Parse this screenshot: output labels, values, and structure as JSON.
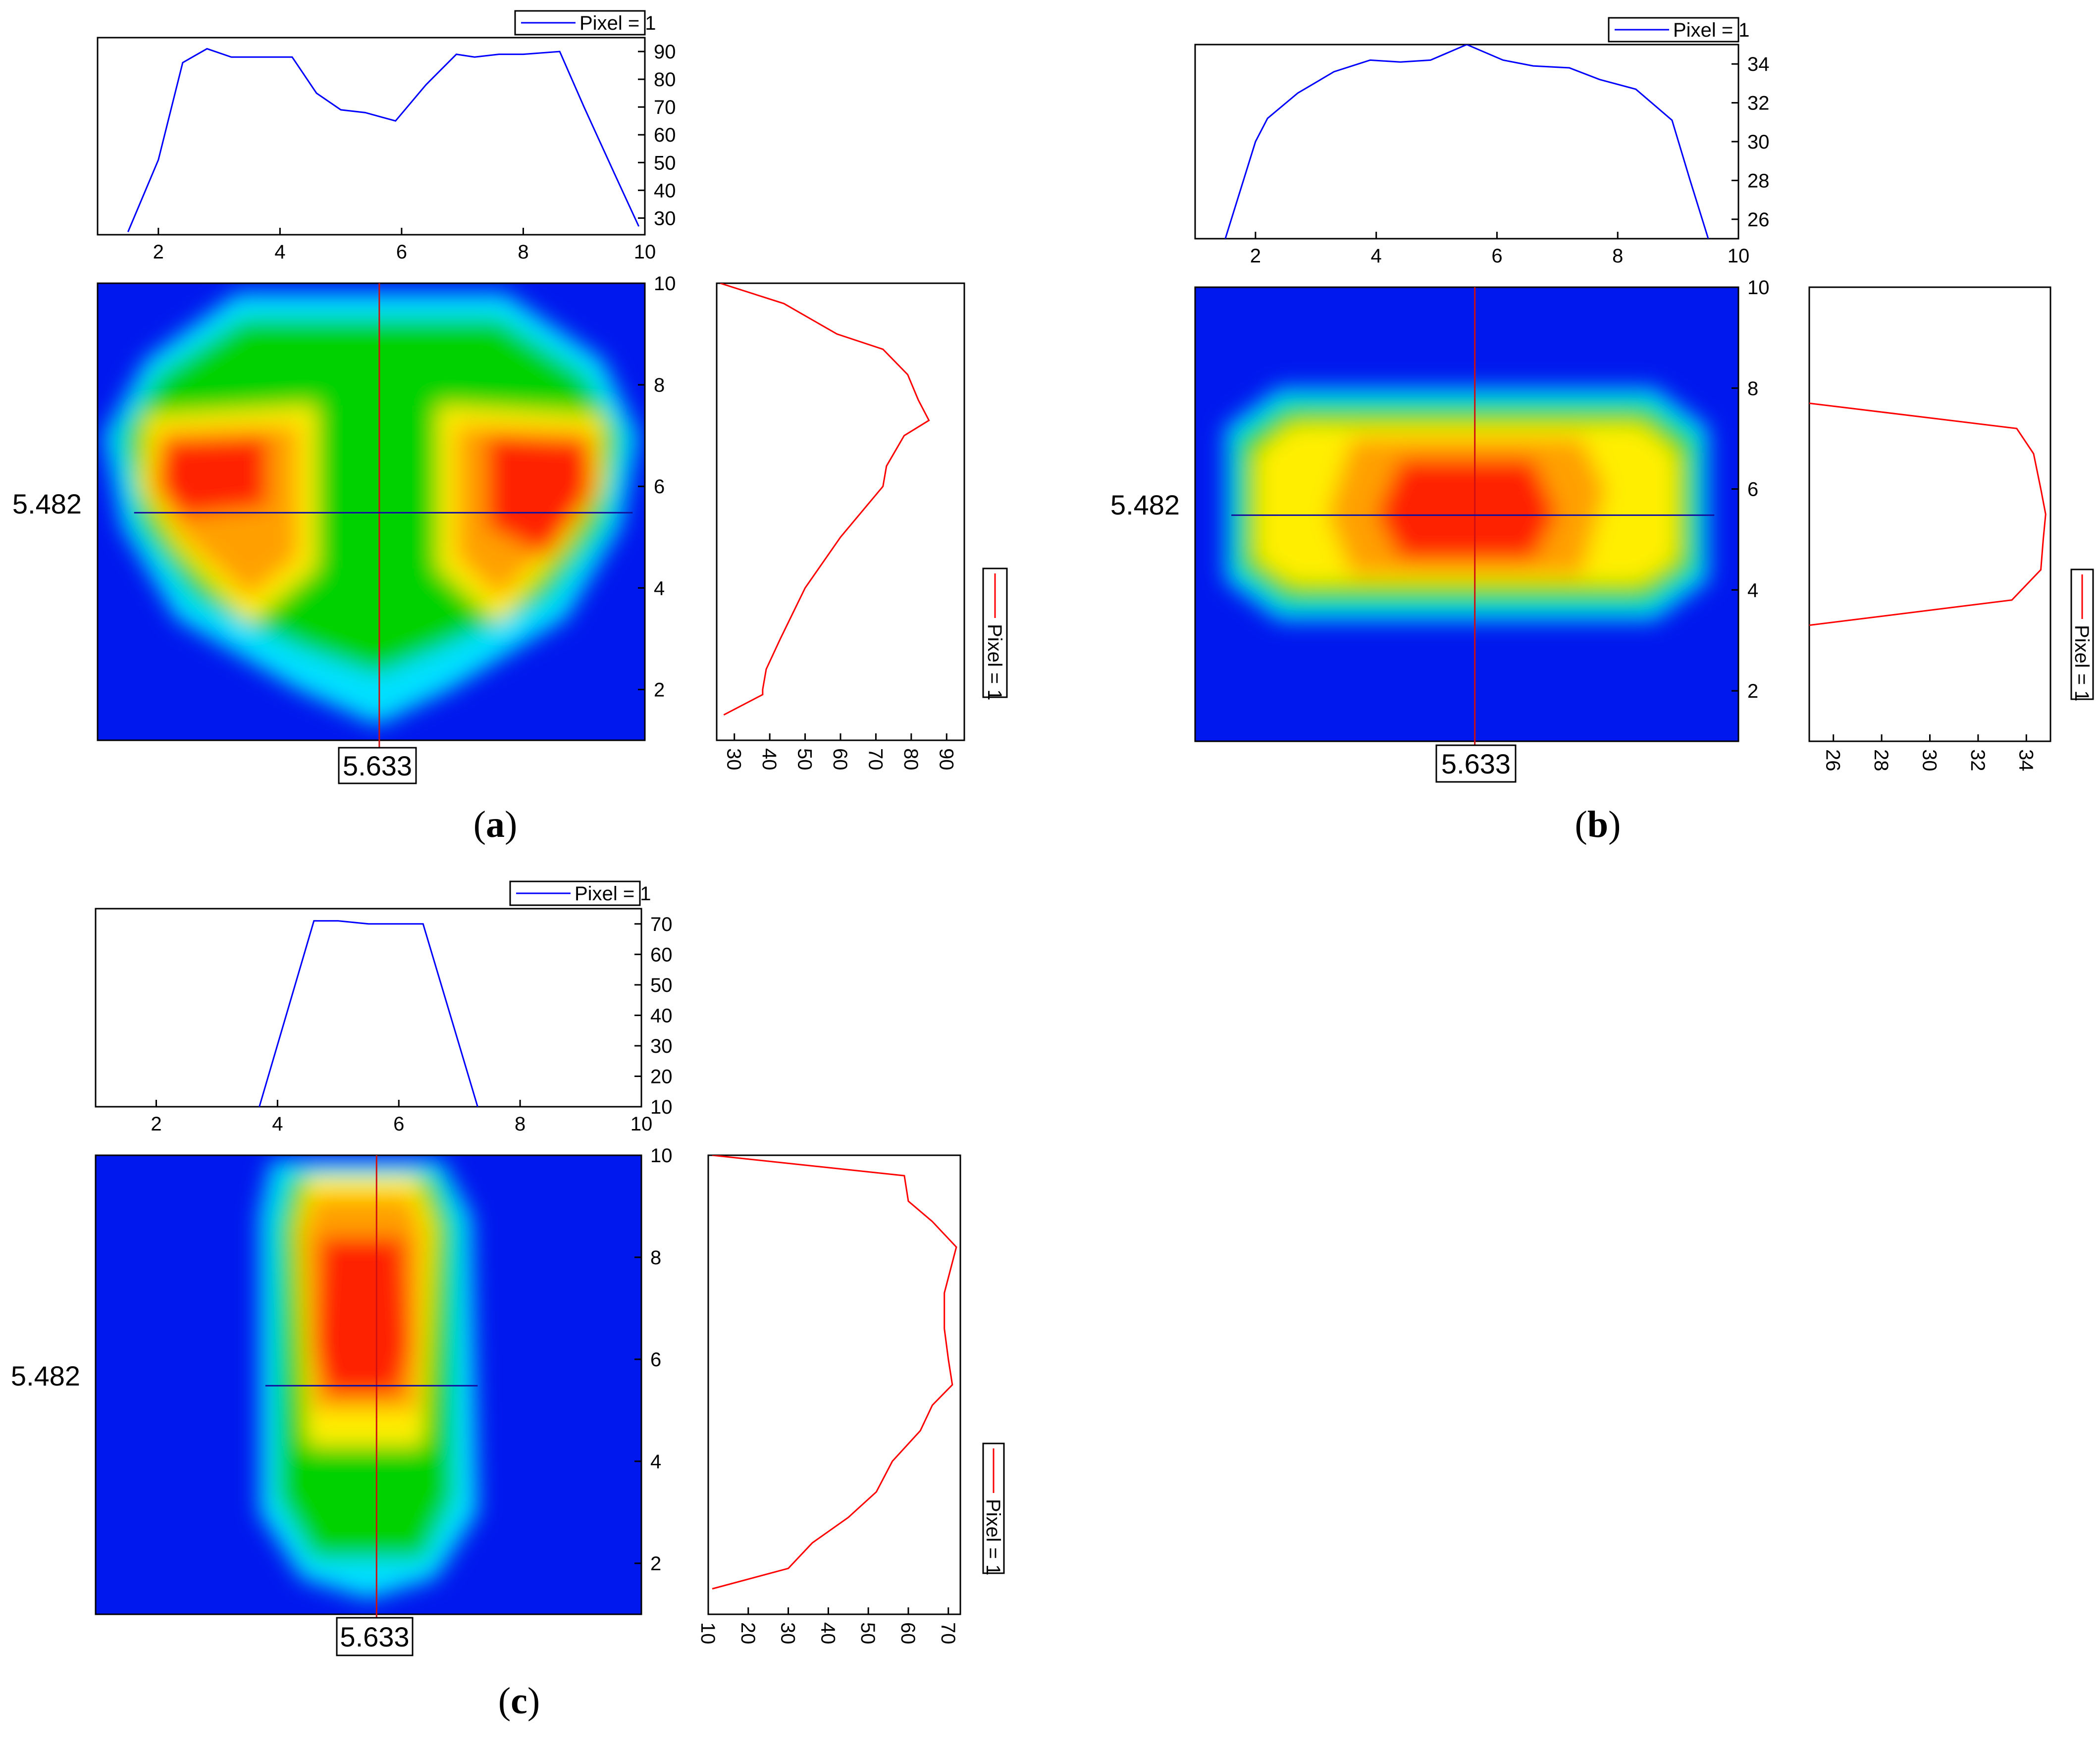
{
  "chart_data": [
    {
      "type": "heatmap",
      "panel_label": "a",
      "crosshair": {
        "x_value": "5.633",
        "y_value": "5.482",
        "x": 5.633,
        "y": 5.482
      },
      "top_profile": {
        "type": "line",
        "legend": "Pixel = 1",
        "series_name": "Pixel = 1",
        "color": "#0000ff",
        "xlim": [
          1,
          10
        ],
        "xticks": [
          2,
          4,
          6,
          8,
          10
        ],
        "ylim": [
          24,
          95
        ],
        "yticks": [
          30,
          40,
          50,
          60,
          70,
          80,
          90
        ],
        "x": [
          1.5,
          2.0,
          2.4,
          2.8,
          3.2,
          3.6,
          4.0,
          4.2,
          4.6,
          5.0,
          5.4,
          5.9,
          6.4,
          6.9,
          7.2,
          7.6,
          8.0,
          8.6,
          9.0,
          9.5,
          9.9
        ],
        "y": [
          25,
          51,
          86,
          91,
          88,
          88,
          88,
          88,
          75,
          69,
          68,
          65,
          78,
          89,
          88,
          89,
          89,
          90,
          70,
          46,
          27
        ]
      },
      "right_profile": {
        "type": "line",
        "legend": "Pixel = 1",
        "series_name": "Pixel = 1",
        "color": "#ff0000",
        "ylim": [
          1,
          10
        ],
        "yticks": [
          2,
          4,
          6,
          8,
          10
        ],
        "xlim": [
          25,
          95
        ],
        "xticks": [
          30,
          40,
          50,
          60,
          70,
          80,
          90
        ],
        "y": [
          1.5,
          1.9,
          2.0,
          2.4,
          3.0,
          4.0,
          5.0,
          6.0,
          6.4,
          7.0,
          7.3,
          7.7,
          8.2,
          8.7,
          9.0,
          9.6,
          10.0
        ],
        "x": [
          27,
          38,
          38,
          39,
          43,
          50,
          60,
          72,
          73,
          78,
          85,
          82,
          79,
          72,
          59,
          44,
          26
        ]
      },
      "map": {
        "xlim": [
          1,
          10
        ],
        "ylim": [
          1,
          10
        ],
        "colorscale": [
          "#0018ee",
          "#00e0ff",
          "#18e07a",
          "#00d200",
          "#ffee00",
          "#ffa000",
          "#ff2400"
        ]
      }
    },
    {
      "type": "heatmap",
      "panel_label": "b",
      "crosshair": {
        "x_value": "5.633",
        "y_value": "5.482",
        "x": 5.633,
        "y": 5.482
      },
      "top_profile": {
        "type": "line",
        "legend": "Pixel = 1",
        "series_name": "Pixel = 1",
        "color": "#0000ff",
        "xlim": [
          1,
          10
        ],
        "xticks": [
          2,
          4,
          6,
          8,
          10
        ],
        "ylim": [
          25,
          35
        ],
        "yticks": [
          26,
          28,
          30,
          32,
          34
        ],
        "x": [
          1.5,
          2.0,
          2.2,
          2.7,
          3.3,
          3.9,
          4.4,
          4.9,
          5.5,
          6.1,
          6.6,
          7.2,
          7.7,
          8.3,
          8.9,
          9.2,
          9.5
        ],
        "y": [
          25,
          30,
          31.2,
          32.5,
          33.6,
          34.2,
          34.1,
          34.2,
          35.0,
          34.2,
          33.9,
          33.8,
          33.2,
          32.7,
          31.1,
          28,
          25
        ]
      },
      "right_profile": {
        "type": "line",
        "legend": "Pixel = 1",
        "series_name": "Pixel = 1",
        "color": "#ff0000",
        "ylim": [
          1,
          10
        ],
        "yticks": [
          2,
          4,
          6,
          8,
          10
        ],
        "xlim": [
          25,
          35
        ],
        "xticks": [
          26,
          28,
          30,
          32,
          34
        ],
        "y": [
          3.3,
          3.8,
          4.4,
          5.0,
          5.5,
          6.0,
          6.7,
          7.2,
          7.7
        ],
        "x": [
          25,
          33.4,
          34.6,
          34.7,
          34.8,
          34.6,
          34.3,
          33.6,
          25
        ]
      },
      "map": {
        "xlim": [
          1,
          10
        ],
        "ylim": [
          1,
          10
        ],
        "colorscale": [
          "#0018ee",
          "#00e0ff",
          "#18e07a",
          "#00d200",
          "#ffee00",
          "#ffa000",
          "#ff2400"
        ]
      }
    },
    {
      "type": "heatmap",
      "panel_label": "c",
      "crosshair": {
        "x_value": "5.633",
        "y_value": "5.482",
        "x": 5.633,
        "y": 5.482
      },
      "top_profile": {
        "type": "line",
        "legend": "Pixel = 1",
        "series_name": "Pixel = 1",
        "color": "#0000ff",
        "xlim": [
          1,
          10
        ],
        "xticks": [
          2,
          4,
          6,
          8,
          10
        ],
        "ylim": [
          10,
          75
        ],
        "yticks": [
          10,
          20,
          30,
          40,
          50,
          60,
          70
        ],
        "x": [
          3.7,
          4.6,
          5.0,
          5.5,
          6.0,
          6.4,
          7.3
        ],
        "y": [
          10,
          71,
          71,
          70,
          70,
          70,
          10
        ]
      },
      "right_profile": {
        "type": "line",
        "legend": "Pixel = 1",
        "series_name": "Pixel = 1",
        "color": "#ff0000",
        "ylim": [
          1,
          10
        ],
        "yticks": [
          2,
          4,
          6,
          8,
          10
        ],
        "xlim": [
          10,
          73
        ],
        "xticks": [
          10,
          20,
          30,
          40,
          50,
          60,
          70
        ],
        "y": [
          1.5,
          1.9,
          2.4,
          2.9,
          3.4,
          4.0,
          4.6,
          5.1,
          5.5,
          6.0,
          6.6,
          7.3,
          8.2,
          8.7,
          9.1,
          9.6,
          10.0
        ],
        "x": [
          11,
          30,
          36,
          45,
          52,
          56,
          63,
          66,
          71,
          70,
          69,
          69,
          72,
          66,
          60,
          59,
          11
        ]
      },
      "map": {
        "xlim": [
          1,
          10
        ],
        "ylim": [
          1,
          10
        ],
        "colorscale": [
          "#0018ee",
          "#00e0ff",
          "#18e07a",
          "#00d200",
          "#ffee00",
          "#ffa000",
          "#ff2400"
        ]
      }
    }
  ]
}
